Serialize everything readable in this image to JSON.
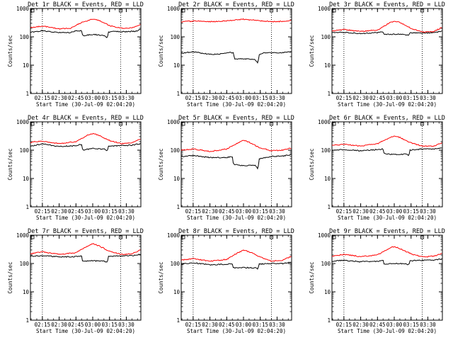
{
  "page": {
    "background": "#ffffff"
  },
  "colors": {
    "events": "#000000",
    "lld": "#ff0000",
    "frame": "#000000"
  },
  "chart_data": [
    {
      "type": "line",
      "title": "Det 1r BLACK = Events, RED = LLD",
      "xlabel": "Start Time (30-Jul-09 02:04:20)",
      "ylabel": "Counts/sec",
      "yscale": "log",
      "ylim": [
        1,
        1000
      ],
      "yticks": [
        "1",
        "10",
        "100",
        "1000"
      ],
      "xticks": [
        "02:15",
        "02:30",
        "02:45",
        "03:00",
        "03:15",
        "03:30"
      ],
      "xlim": [
        "02:04:20",
        "03:43:00"
      ],
      "vlines": [
        "02:15:00",
        "03:25:00"
      ],
      "grid": false,
      "series": [
        {
          "name": "Events",
          "color": "#000000",
          "x": [
            "02:04:20",
            "02:15:00",
            "02:30:00",
            "02:40:00",
            "02:45:00",
            "02:50:00",
            "02:51:00",
            "02:55:00",
            "03:00:00",
            "03:05:00",
            "03:10:00",
            "03:13:00",
            "03:14:00",
            "03:20:00",
            "03:30:00",
            "03:40:00",
            "03:43:00"
          ],
          "y": [
            145,
            165,
            140,
            142,
            165,
            165,
            110,
            115,
            120,
            118,
            110,
            95,
            145,
            155,
            150,
            160,
            190
          ]
        },
        {
          "name": "LLD",
          "color": "#ff0000",
          "x": [
            "02:04:20",
            "02:15:00",
            "02:30:00",
            "02:40:00",
            "02:50:00",
            "03:00:00",
            "03:05:00",
            "03:15:00",
            "03:25:00",
            "03:35:00",
            "03:43:00"
          ],
          "y": [
            210,
            240,
            190,
            200,
            320,
            430,
            390,
            250,
            200,
            210,
            280
          ]
        }
      ]
    },
    {
      "type": "line",
      "title": "Det 2r BLACK = Events, RED = LLD",
      "xlabel": "Start Time (30-Jul-09 02:04:20)",
      "ylabel": "Counts/sec",
      "yscale": "log",
      "ylim": [
        1,
        1000
      ],
      "yticks": [
        "1",
        "10",
        "100",
        "1000"
      ],
      "xticks": [
        "02:15",
        "02:30",
        "02:45",
        "03:00",
        "03:15",
        "03:30"
      ],
      "xlim": [
        "02:04:20",
        "03:43:00"
      ],
      "vlines": [
        "02:15:00",
        "03:25:00"
      ],
      "grid": false,
      "series": [
        {
          "name": "Events",
          "color": "#000000",
          "x": [
            "02:04:20",
            "02:15:00",
            "02:30:00",
            "02:40:00",
            "02:48:00",
            "02:51:00",
            "02:52:00",
            "03:00:00",
            "03:10:00",
            "03:13:00",
            "03:14:00",
            "03:20:00",
            "03:30:00",
            "03:43:00"
          ],
          "y": [
            26,
            30,
            24,
            25,
            28,
            28,
            16,
            17,
            16,
            12,
            24,
            28,
            27,
            30
          ]
        },
        {
          "name": "LLD",
          "color": "#ff0000",
          "x": [
            "02:04:20",
            "02:15:00",
            "02:30:00",
            "02:45:00",
            "03:00:00",
            "03:15:00",
            "03:30:00",
            "03:43:00"
          ],
          "y": [
            340,
            360,
            340,
            370,
            420,
            370,
            340,
            380
          ]
        }
      ]
    },
    {
      "type": "line",
      "title": "Det 3r BLACK = Events, RED = LLD",
      "xlabel": "Start Time (30-Jul-09 02:04:20)",
      "ylabel": "Counts/sec",
      "yscale": "log",
      "ylim": [
        1,
        1000
      ],
      "yticks": [
        "1",
        "10",
        "100",
        "1000"
      ],
      "xticks": [
        "02:15",
        "02:30",
        "02:45",
        "03:00",
        "03:15",
        "03:30"
      ],
      "xlim": [
        "02:04:20",
        "03:43:00"
      ],
      "vlines": [
        "02:15:00",
        "03:25:00"
      ],
      "grid": false,
      "series": [
        {
          "name": "Events",
          "color": "#000000",
          "x": [
            "02:04:20",
            "02:15:00",
            "02:30:00",
            "02:45:00",
            "02:50:00",
            "02:51:00",
            "03:00:00",
            "03:10:00",
            "03:13:00",
            "03:14:00",
            "03:25:00",
            "03:35:00",
            "03:43:00"
          ],
          "y": [
            140,
            145,
            130,
            140,
            150,
            120,
            125,
            120,
            110,
            140,
            135,
            140,
            160
          ]
        },
        {
          "name": "LLD",
          "color": "#ff0000",
          "x": [
            "02:04:20",
            "02:15:00",
            "02:30:00",
            "02:45:00",
            "02:55:00",
            "03:00:00",
            "03:05:00",
            "03:15:00",
            "03:25:00",
            "03:35:00",
            "03:43:00"
          ],
          "y": [
            160,
            180,
            155,
            175,
            300,
            360,
            320,
            200,
            150,
            150,
            220
          ]
        }
      ]
    },
    {
      "type": "line",
      "title": "Det 4r BLACK = Events, RED = LLD",
      "xlabel": "Start Time (30-Jul-09 02:04:20)",
      "ylabel": "Counts/sec",
      "yscale": "log",
      "ylim": [
        1,
        1000
      ],
      "yticks": [
        "1",
        "10",
        "100",
        "1000"
      ],
      "xticks": [
        "02:15",
        "02:30",
        "02:45",
        "03:00",
        "03:15",
        "03:30"
      ],
      "xlim": [
        "02:04:20",
        "03:43:00"
      ],
      "vlines": [
        "02:15:00",
        "03:25:00"
      ],
      "grid": false,
      "series": [
        {
          "name": "Events",
          "color": "#000000",
          "x": [
            "02:04:20",
            "02:15:00",
            "02:30:00",
            "02:45:00",
            "02:50:00",
            "02:51:00",
            "03:00:00",
            "03:10:00",
            "03:13:00",
            "03:14:00",
            "03:25:00",
            "03:35:00",
            "03:43:00"
          ],
          "y": [
            140,
            165,
            135,
            145,
            160,
            100,
            115,
            110,
            95,
            140,
            145,
            150,
            170
          ]
        },
        {
          "name": "LLD",
          "color": "#ff0000",
          "x": [
            "02:04:20",
            "02:15:00",
            "02:30:00",
            "02:45:00",
            "02:55:00",
            "03:00:00",
            "03:05:00",
            "03:15:00",
            "03:25:00",
            "03:35:00",
            "03:43:00"
          ],
          "y": [
            190,
            210,
            170,
            200,
            330,
            390,
            340,
            220,
            170,
            180,
            250
          ]
        }
      ]
    },
    {
      "type": "line",
      "title": "Det 5r BLACK = Events, RED = LLD",
      "xlabel": "Start Time (30-Jul-09 02:04:20)",
      "ylabel": "Counts/sec",
      "yscale": "log",
      "ylim": [
        1,
        1000
      ],
      "yticks": [
        "1",
        "10",
        "100",
        "1000"
      ],
      "xticks": [
        "02:15",
        "02:30",
        "02:45",
        "03:00",
        "03:15",
        "03:30"
      ],
      "xlim": [
        "02:04:20",
        "03:43:00"
      ],
      "vlines": [
        "02:15:00",
        "03:25:00"
      ],
      "grid": false,
      "series": [
        {
          "name": "Events",
          "color": "#000000",
          "x": [
            "02:04:20",
            "02:15:00",
            "02:30:00",
            "02:45:00",
            "02:50:00",
            "02:51:00",
            "03:00:00",
            "03:10:00",
            "03:13:00",
            "03:14:00",
            "03:25:00",
            "03:35:00",
            "03:43:00"
          ],
          "y": [
            60,
            65,
            55,
            55,
            60,
            32,
            28,
            30,
            22,
            50,
            60,
            62,
            70
          ]
        },
        {
          "name": "LLD",
          "color": "#ff0000",
          "x": [
            "02:04:20",
            "02:15:00",
            "02:30:00",
            "02:45:00",
            "02:55:00",
            "03:00:00",
            "03:05:00",
            "03:15:00",
            "03:25:00",
            "03:35:00",
            "03:43:00"
          ],
          "y": [
            100,
            110,
            90,
            110,
            180,
            230,
            190,
            120,
            95,
            100,
            120
          ]
        }
      ]
    },
    {
      "type": "line",
      "title": "Det 6r BLACK = Events, RED = LLD",
      "xlabel": "Start Time (30-Jul-09 02:04:20)",
      "ylabel": "Counts/sec",
      "yscale": "log",
      "ylim": [
        1,
        1000
      ],
      "yticks": [
        "1",
        "10",
        "100",
        "1000"
      ],
      "xticks": [
        "02:15",
        "02:30",
        "02:45",
        "03:00",
        "03:15",
        "03:30"
      ],
      "xlim": [
        "02:04:20",
        "03:43:00"
      ],
      "vlines": [
        "02:15:00",
        "03:25:00"
      ],
      "grid": false,
      "series": [
        {
          "name": "Events",
          "color": "#000000",
          "x": [
            "02:04:20",
            "02:15:00",
            "02:30:00",
            "02:45:00",
            "02:50:00",
            "02:51:00",
            "03:00:00",
            "03:10:00",
            "03:13:00",
            "03:14:00",
            "03:25:00",
            "03:35:00",
            "03:43:00"
          ],
          "y": [
            100,
            105,
            95,
            105,
            110,
            75,
            70,
            72,
            65,
            100,
            110,
            110,
            125
          ]
        },
        {
          "name": "LLD",
          "color": "#ff0000",
          "x": [
            "02:04:20",
            "02:15:00",
            "02:30:00",
            "02:45:00",
            "02:55:00",
            "03:00:00",
            "03:05:00",
            "03:15:00",
            "03:25:00",
            "03:35:00",
            "03:43:00"
          ],
          "y": [
            150,
            160,
            140,
            170,
            260,
            320,
            280,
            180,
            140,
            140,
            180
          ]
        }
      ]
    },
    {
      "type": "line",
      "title": "Det 7r BLACK = Events, RED = LLD",
      "xlabel": "Start Time (30-Jul-09 02:04:20)",
      "ylabel": "Counts/sec",
      "yscale": "log",
      "ylim": [
        1,
        1000
      ],
      "yticks": [
        "1",
        "10",
        "100",
        "1000"
      ],
      "xticks": [
        "02:15",
        "02:30",
        "02:45",
        "03:00",
        "03:15",
        "03:30"
      ],
      "xlim": [
        "02:04:20",
        "03:43:00"
      ],
      "vlines": [
        "02:15:00",
        "03:25:00"
      ],
      "grid": false,
      "series": [
        {
          "name": "Events",
          "color": "#000000",
          "x": [
            "02:04:20",
            "02:15:00",
            "02:30:00",
            "02:45:00",
            "02:50:00",
            "02:51:00",
            "03:00:00",
            "03:10:00",
            "03:13:00",
            "03:14:00",
            "03:25:00",
            "03:35:00",
            "03:43:00"
          ],
          "y": [
            180,
            190,
            170,
            175,
            185,
            120,
            125,
            120,
            110,
            180,
            185,
            190,
            210
          ]
        },
        {
          "name": "LLD",
          "color": "#ff0000",
          "x": [
            "02:04:20",
            "02:15:00",
            "02:30:00",
            "02:45:00",
            "02:55:00",
            "03:00:00",
            "03:05:00",
            "03:15:00",
            "03:25:00",
            "03:35:00",
            "03:43:00"
          ],
          "y": [
            220,
            260,
            210,
            240,
            400,
            500,
            430,
            270,
            210,
            220,
            300
          ]
        }
      ]
    },
    {
      "type": "line",
      "title": "Det 8r BLACK = Events, RED = LLD",
      "xlabel": "Start Time (30-Jul-09 02:04:20)",
      "ylabel": "Counts/sec",
      "yscale": "log",
      "ylim": [
        1,
        1000
      ],
      "yticks": [
        "1",
        "10",
        "100",
        "1000"
      ],
      "xticks": [
        "02:15",
        "02:30",
        "02:45",
        "03:00",
        "03:15",
        "03:30"
      ],
      "xlim": [
        "02:04:20",
        "03:43:00"
      ],
      "vlines": [
        "02:15:00",
        "03:25:00"
      ],
      "grid": false,
      "series": [
        {
          "name": "Events",
          "color": "#000000",
          "x": [
            "02:04:20",
            "02:15:00",
            "02:30:00",
            "02:45:00",
            "02:50:00",
            "02:51:00",
            "03:00:00",
            "03:10:00",
            "03:13:00",
            "03:14:00",
            "03:25:00",
            "03:35:00",
            "03:43:00"
          ],
          "y": [
            95,
            105,
            90,
            95,
            100,
            70,
            72,
            70,
            65,
            95,
            100,
            100,
            110
          ]
        },
        {
          "name": "LLD",
          "color": "#ff0000",
          "x": [
            "02:04:20",
            "02:15:00",
            "02:30:00",
            "02:45:00",
            "02:55:00",
            "03:00:00",
            "03:05:00",
            "03:15:00",
            "03:25:00",
            "03:35:00",
            "03:43:00"
          ],
          "y": [
            130,
            150,
            120,
            140,
            240,
            300,
            260,
            170,
            120,
            130,
            180
          ]
        }
      ]
    },
    {
      "type": "line",
      "title": "Det 9r BLACK = Events, RED = LLD",
      "xlabel": "Start Time (30-Jul-09 02:04:20)",
      "ylabel": "Counts/sec",
      "yscale": "log",
      "ylim": [
        1,
        1000
      ],
      "yticks": [
        "1",
        "10",
        "100",
        "1000"
      ],
      "xticks": [
        "02:15",
        "02:30",
        "02:45",
        "03:00",
        "03:15",
        "03:30"
      ],
      "xlim": [
        "02:04:20",
        "03:43:00"
      ],
      "vlines": [
        "02:15:00",
        "03:25:00"
      ],
      "grid": false,
      "series": [
        {
          "name": "Events",
          "color": "#000000",
          "x": [
            "02:04:20",
            "02:15:00",
            "02:30:00",
            "02:45:00",
            "02:50:00",
            "02:51:00",
            "03:00:00",
            "03:10:00",
            "03:13:00",
            "03:14:00",
            "03:25:00",
            "03:35:00",
            "03:43:00"
          ],
          "y": [
            120,
            130,
            115,
            120,
            130,
            95,
            100,
            98,
            90,
            125,
            130,
            130,
            145
          ]
        },
        {
          "name": "LLD",
          "color": "#ff0000",
          "x": [
            "02:04:20",
            "02:15:00",
            "02:30:00",
            "02:45:00",
            "02:55:00",
            "03:00:00",
            "03:05:00",
            "03:15:00",
            "03:25:00",
            "03:35:00",
            "03:43:00"
          ],
          "y": [
            180,
            210,
            175,
            200,
            340,
            400,
            340,
            220,
            170,
            180,
            230
          ]
        }
      ]
    }
  ]
}
